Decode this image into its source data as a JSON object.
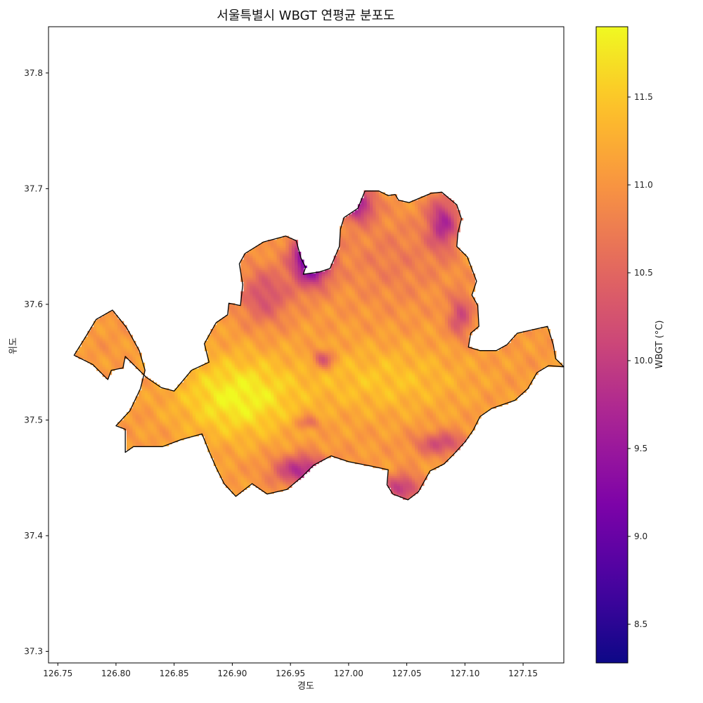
{
  "chart_data": {
    "type": "heatmap",
    "title": "서울특별시 WBGT 연평균 분포도",
    "xlabel": "경도",
    "ylabel": "위도",
    "xlim": [
      126.742,
      127.185
    ],
    "ylim": [
      37.29,
      37.84
    ],
    "xticks": [
      {
        "value": 126.75,
        "label": "126.75"
      },
      {
        "value": 126.8,
        "label": "126.80"
      },
      {
        "value": 126.85,
        "label": "126.85"
      },
      {
        "value": 126.9,
        "label": "126.90"
      },
      {
        "value": 126.95,
        "label": "126.95"
      },
      {
        "value": 127.0,
        "label": "127.00"
      },
      {
        "value": 127.05,
        "label": "127.05"
      },
      {
        "value": 127.1,
        "label": "127.10"
      },
      {
        "value": 127.15,
        "label": "127.15"
      }
    ],
    "yticks": [
      {
        "value": 37.3,
        "label": "37.3"
      },
      {
        "value": 37.4,
        "label": "37.4"
      },
      {
        "value": 37.5,
        "label": "37.5"
      },
      {
        "value": 37.6,
        "label": "37.6"
      },
      {
        "value": 37.7,
        "label": "37.7"
      },
      {
        "value": 37.8,
        "label": "37.8"
      }
    ],
    "colorbar": {
      "label": "WBGT (°C)",
      "colormap": "plasma",
      "range": [
        8.28,
        11.9
      ],
      "ticks": [
        {
          "value": 8.5,
          "label": "8.5"
        },
        {
          "value": 9.0,
          "label": "9.0"
        },
        {
          "value": 9.5,
          "label": "9.5"
        },
        {
          "value": 10.0,
          "label": "10.0"
        },
        {
          "value": 10.5,
          "label": "10.5"
        },
        {
          "value": 11.0,
          "label": "11.0"
        },
        {
          "value": 11.5,
          "label": "11.5"
        }
      ]
    },
    "boundary": [
      [
        126.764,
        37.556
      ],
      [
        126.78,
        37.548
      ],
      [
        126.793,
        37.535
      ],
      [
        126.796,
        37.543
      ],
      [
        126.806,
        37.545
      ],
      [
        126.808,
        37.555
      ],
      [
        126.826,
        37.537
      ],
      [
        126.839,
        37.528
      ],
      [
        126.85,
        37.525
      ],
      [
        126.865,
        37.543
      ],
      [
        126.88,
        37.55
      ],
      [
        126.876,
        37.566
      ],
      [
        126.886,
        37.584
      ],
      [
        126.896,
        37.591
      ],
      [
        126.897,
        37.601
      ],
      [
        126.907,
        37.599
      ],
      [
        126.909,
        37.617
      ],
      [
        126.906,
        37.635
      ],
      [
        126.911,
        37.644
      ],
      [
        126.927,
        37.654
      ],
      [
        126.946,
        37.659
      ],
      [
        126.955,
        37.655
      ],
      [
        126.959,
        37.64
      ],
      [
        126.963,
        37.632
      ],
      [
        126.961,
        37.626
      ],
      [
        126.975,
        37.628
      ],
      [
        126.984,
        37.631
      ],
      [
        126.992,
        37.65
      ],
      [
        126.993,
        37.665
      ],
      [
        126.996,
        37.675
      ],
      [
        127.008,
        37.683
      ],
      [
        127.014,
        37.698
      ],
      [
        127.026,
        37.698
      ],
      [
        127.034,
        37.694
      ],
      [
        127.04,
        37.695
      ],
      [
        127.043,
        37.69
      ],
      [
        127.052,
        37.688
      ],
      [
        127.071,
        37.696
      ],
      [
        127.08,
        37.697
      ],
      [
        127.093,
        37.686
      ],
      [
        127.097,
        37.674
      ],
      [
        127.094,
        37.662
      ],
      [
        127.093,
        37.65
      ],
      [
        127.102,
        37.641
      ],
      [
        127.107,
        37.628
      ],
      [
        127.11,
        37.62
      ],
      [
        127.106,
        37.608
      ],
      [
        127.111,
        37.599
      ],
      [
        127.112,
        37.581
      ],
      [
        127.105,
        37.575
      ],
      [
        127.103,
        37.563
      ],
      [
        127.113,
        37.56
      ],
      [
        127.127,
        37.56
      ],
      [
        127.136,
        37.565
      ],
      [
        127.145,
        37.575
      ],
      [
        127.158,
        37.578
      ],
      [
        127.171,
        37.581
      ],
      [
        127.176,
        37.565
      ],
      [
        127.178,
        37.553
      ],
      [
        127.185,
        37.546
      ],
      [
        127.172,
        37.547
      ],
      [
        127.162,
        37.541
      ],
      [
        127.154,
        37.527
      ],
      [
        127.143,
        37.517
      ],
      [
        127.123,
        37.51
      ],
      [
        127.113,
        37.503
      ],
      [
        127.107,
        37.491
      ],
      [
        127.1,
        37.481
      ],
      [
        127.09,
        37.47
      ],
      [
        127.082,
        37.462
      ],
      [
        127.07,
        37.456
      ],
      [
        127.06,
        37.438
      ],
      [
        127.051,
        37.431
      ],
      [
        127.038,
        37.436
      ],
      [
        127.033,
        37.444
      ],
      [
        127.034,
        37.457
      ],
      [
        127.02,
        37.46
      ],
      [
        127.0,
        37.464
      ],
      [
        126.985,
        37.469
      ],
      [
        126.97,
        37.461
      ],
      [
        126.96,
        37.451
      ],
      [
        126.947,
        37.44
      ],
      [
        126.93,
        37.436
      ],
      [
        126.917,
        37.445
      ],
      [
        126.903,
        37.434
      ],
      [
        126.893,
        37.445
      ],
      [
        126.886,
        37.459
      ],
      [
        126.88,
        37.473
      ],
      [
        126.874,
        37.488
      ],
      [
        126.856,
        37.483
      ],
      [
        126.84,
        37.477
      ],
      [
        126.815,
        37.477
      ],
      [
        126.808,
        37.472
      ],
      [
        126.808,
        37.492
      ],
      [
        126.8,
        37.495
      ],
      [
        126.812,
        37.508
      ],
      [
        126.821,
        37.527
      ],
      [
        126.825,
        37.543
      ],
      [
        126.82,
        37.56
      ],
      [
        126.809,
        37.58
      ],
      [
        126.797,
        37.595
      ],
      [
        126.783,
        37.587
      ],
      [
        126.774,
        37.572
      ],
      [
        126.764,
        37.556
      ]
    ],
    "features": [
      {
        "kind": "low",
        "lon": 126.968,
        "lat": 37.64,
        "rx": 0.016,
        "ry": 0.022,
        "strength": 2.3
      },
      {
        "kind": "low",
        "lon": 127.008,
        "lat": 37.686,
        "rx": 0.014,
        "ry": 0.014,
        "strength": 1.4
      },
      {
        "kind": "low",
        "lon": 127.081,
        "lat": 37.671,
        "rx": 0.013,
        "ry": 0.022,
        "strength": 1.25
      },
      {
        "kind": "low",
        "lon": 127.096,
        "lat": 37.59,
        "rx": 0.01,
        "ry": 0.018,
        "strength": 0.9
      },
      {
        "kind": "low",
        "lon": 126.928,
        "lat": 37.608,
        "rx": 0.022,
        "ry": 0.024,
        "strength": 0.8
      },
      {
        "kind": "low",
        "lon": 126.978,
        "lat": 37.553,
        "rx": 0.009,
        "ry": 0.008,
        "strength": 0.9
      },
      {
        "kind": "low",
        "lon": 126.96,
        "lat": 37.457,
        "rx": 0.024,
        "ry": 0.013,
        "strength": 1.3
      },
      {
        "kind": "low",
        "lon": 126.98,
        "lat": 37.452,
        "rx": 0.008,
        "ry": 0.007,
        "strength": 0.9
      },
      {
        "kind": "low",
        "lon": 127.046,
        "lat": 37.442,
        "rx": 0.016,
        "ry": 0.011,
        "strength": 1.1
      },
      {
        "kind": "low",
        "lon": 127.08,
        "lat": 37.48,
        "rx": 0.022,
        "ry": 0.01,
        "strength": 0.9
      },
      {
        "kind": "low",
        "lon": 126.965,
        "lat": 37.498,
        "rx": 0.01,
        "ry": 0.006,
        "strength": 0.6
      },
      {
        "kind": "low",
        "lon": 127.04,
        "lat": 37.64,
        "rx": 0.05,
        "ry": 0.04,
        "strength": 0.3
      },
      {
        "kind": "high",
        "lon": 126.905,
        "lat": 37.52,
        "rx": 0.05,
        "ry": 0.035,
        "strength": 0.8
      },
      {
        "kind": "high",
        "lon": 127.03,
        "lat": 37.535,
        "rx": 0.07,
        "ry": 0.03,
        "strength": 0.4
      }
    ],
    "base_value": 11.05,
    "cells": {
      "nx": 165,
      "ny": 160
    }
  }
}
